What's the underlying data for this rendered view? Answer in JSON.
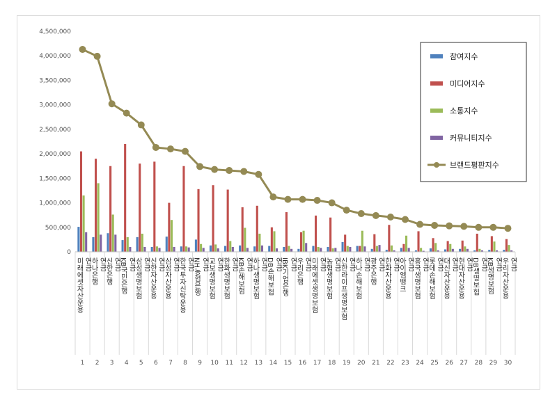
{
  "chart_data": {
    "type": "bar",
    "y_ticks": [
      "0",
      "500,000",
      "1,000,000",
      "1,500,000",
      "2,000,000",
      "2,500,000",
      "3,000,000",
      "3,500,000",
      "4,000,000",
      "4,500,000"
    ],
    "ylim": [
      0,
      4500000
    ],
    "grid": false,
    "legend_position": "top-right",
    "categories": [
      "미래에셋자산운용 연금",
      "하나은행 연금",
      "신한은행 연금",
      "KB국민은행 연금",
      "삼성생명보험 연금",
      "신한자산운용 연금",
      "삼성자산운용 연금",
      "한국투자신탁운용 연금",
      "NH농협은행 연금",
      "교보생명보험 연금",
      "한화생명보험 연금",
      "KB손해보험 연금",
      "하나생명보험 연금",
      "DB손해보험 연금",
      "IBK기업은행 연금",
      "우리은행 연금",
      "미래에셋생명보험 연금",
      "농협생명보험 연금",
      "신한라이프생명보험 연금",
      "하나손해보험 연금",
      "광주은행 연금",
      "한화자산운용 연금",
      "아이엠뱅크 연금",
      "흥국생명보험 연금",
      "롯데손해보험 연금",
      "대신자산운용 연금",
      "현대자산운용 연금",
      "DB생명보험 연금",
      "KB생명보험 연금",
      "우리자산운용 연금"
    ],
    "index_labels": [
      "1",
      "2",
      "3",
      "4",
      "5",
      "6",
      "7",
      "8",
      "9",
      "10",
      "11",
      "12",
      "13",
      "14",
      "15",
      "16",
      "17",
      "18",
      "19",
      "20",
      "21",
      "22",
      "23",
      "24",
      "25",
      "26",
      "27",
      "28",
      "29",
      "30"
    ],
    "series": [
      {
        "name": "참여지수",
        "kind": "bar",
        "color": "#4f81bd",
        "values": [
          510000,
          300000,
          380000,
          240000,
          300000,
          100000,
          310000,
          110000,
          250000,
          130000,
          120000,
          130000,
          110000,
          120000,
          100000,
          60000,
          120000,
          100000,
          200000,
          120000,
          60000,
          40000,
          80000,
          30000,
          70000,
          50000,
          60000,
          30000,
          40000,
          40000
        ]
      },
      {
        "name": "미디어지수",
        "kind": "bar",
        "color": "#c0504d",
        "values": [
          2050000,
          1900000,
          1750000,
          2200000,
          1800000,
          1840000,
          1000000,
          1750000,
          1280000,
          1360000,
          1270000,
          910000,
          940000,
          500000,
          810000,
          400000,
          740000,
          700000,
          350000,
          120000,
          360000,
          550000,
          160000,
          420000,
          280000,
          220000,
          230000,
          370000,
          320000,
          260000
        ]
      },
      {
        "name": "소통지수",
        "kind": "bar",
        "color": "#9bbb59",
        "values": [
          1150000,
          1400000,
          760000,
          300000,
          370000,
          110000,
          650000,
          110000,
          160000,
          150000,
          220000,
          490000,
          370000,
          420000,
          120000,
          430000,
          100000,
          70000,
          120000,
          430000,
          120000,
          130000,
          330000,
          80000,
          180000,
          160000,
          110000,
          60000,
          210000,
          140000
        ]
      },
      {
        "name": "커뮤니티지수",
        "kind": "bar",
        "color": "#8064a2",
        "values": [
          400000,
          350000,
          350000,
          100000,
          100000,
          80000,
          100000,
          90000,
          80000,
          70000,
          100000,
          80000,
          130000,
          70000,
          60000,
          180000,
          80000,
          80000,
          100000,
          110000,
          140000,
          30000,
          80000,
          20000,
          30000,
          60000,
          60000,
          30000,
          30000,
          30000
        ]
      },
      {
        "name": "브랜드평판지수",
        "kind": "line",
        "color": "#948a54",
        "values": [
          4130000,
          3990000,
          3020000,
          2830000,
          2590000,
          2130000,
          2100000,
          2050000,
          1740000,
          1680000,
          1660000,
          1640000,
          1580000,
          1120000,
          1070000,
          1070000,
          1050000,
          1000000,
          850000,
          780000,
          740000,
          710000,
          660000,
          560000,
          540000,
          530000,
          520000,
          500000,
          500000,
          480000
        ]
      }
    ]
  }
}
